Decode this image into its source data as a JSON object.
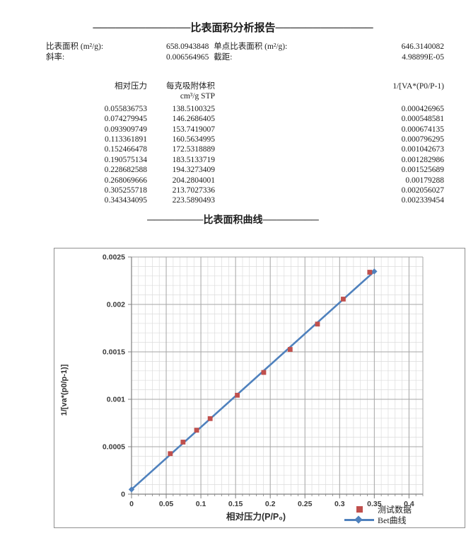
{
  "report": {
    "title": "─────────────比表面积分析报告─────────────",
    "summary": {
      "rows": [
        {
          "label_left": "比表面积 (m²/g):",
          "value_mid": "658.0943848",
          "label_mid": "单点比表面积 (m²/g):",
          "value_right": "646.3140082"
        },
        {
          "label_left": "斜率:",
          "value_mid": "0.006564965",
          "label_mid": "截距:",
          "value_right": "4.98899E-05"
        }
      ]
    },
    "table": {
      "col1": "相对压力",
      "col2": "每克吸附体积",
      "col2_unit": "cm³/g STP",
      "col3": "1/[VA*(P0/P-1)",
      "rows": [
        [
          "0.055836753",
          "138.5100325",
          "0.000426965"
        ],
        [
          "0.074279945",
          "146.2686405",
          "0.000548581"
        ],
        [
          "0.093909749",
          "153.7419007",
          "0.000674135"
        ],
        [
          "0.113361891",
          "160.5634995",
          "0.000796295"
        ],
        [
          "0.152466478",
          "172.5318889",
          "0.001042673"
        ],
        [
          "0.190575134",
          "183.5133719",
          "0.001282986"
        ],
        [
          "0.228682588",
          "194.3273409",
          "0.001525689"
        ],
        [
          "0.268069666",
          "204.2804001",
          "0.00179288"
        ],
        [
          "0.305255718",
          "213.7027336",
          "0.002056027"
        ],
        [
          "0.343434095",
          "223.5890493",
          "0.002339454"
        ]
      ]
    },
    "curve_title": "────────比表面积曲线────────"
  },
  "chart_data": {
    "type": "scatter",
    "title": "比表面积曲线",
    "xlabel": "相对压力(P/P₀)",
    "ylabel": "1/[va*(p0/p-1)]",
    "xlim": [
      0,
      0.42
    ],
    "ylim": [
      0,
      0.0025
    ],
    "x_minor_step": 0.01,
    "y_minor_step": 0.0001,
    "grid": true,
    "legend_position": "bottom-right",
    "x_ticks": {
      "values": [
        0,
        0.05,
        0.1,
        0.15,
        0.2,
        0.25,
        0.3,
        0.35,
        0.4
      ],
      "labels": [
        "0",
        "0.05",
        "0.1",
        "0.15",
        "0.2",
        "0.25",
        "0.3",
        "0.35",
        "0.4"
      ]
    },
    "y_ticks": {
      "values": [
        0,
        0.0005,
        0.001,
        0.0015,
        0.002,
        0.0025
      ],
      "labels": [
        "0",
        "0.0005",
        "0.001",
        "0.0015",
        "0.002",
        "0.0025"
      ]
    },
    "colors": {
      "grid_minor": "#dcdcdc",
      "grid_major": "#a6a6a6",
      "axis": "#808080",
      "scatter": "#c0504d",
      "line": "#4f81bd",
      "text": "#3a3a3a"
    },
    "series": [
      {
        "name": "测试数据",
        "type": "scatter",
        "marker": "square",
        "color": "#c0504d",
        "x": [
          0.055836753,
          0.074279945,
          0.093909749,
          0.113361891,
          0.152466478,
          0.190575134,
          0.228682588,
          0.268069666,
          0.305255718,
          0.343434095
        ],
        "y": [
          0.000426965,
          0.000548581,
          0.000674135,
          0.000796295,
          0.001042673,
          0.001282986,
          0.001525689,
          0.00179288,
          0.002056027,
          0.002339454
        ]
      },
      {
        "name": "Bet曲线",
        "type": "line",
        "marker": "diamond",
        "color": "#4f81bd",
        "slope": 0.006564965,
        "intercept": 4.98899e-05,
        "x": [
          0,
          0.35
        ],
        "y": [
          4.98899e-05,
          0.0023476
        ]
      }
    ]
  }
}
